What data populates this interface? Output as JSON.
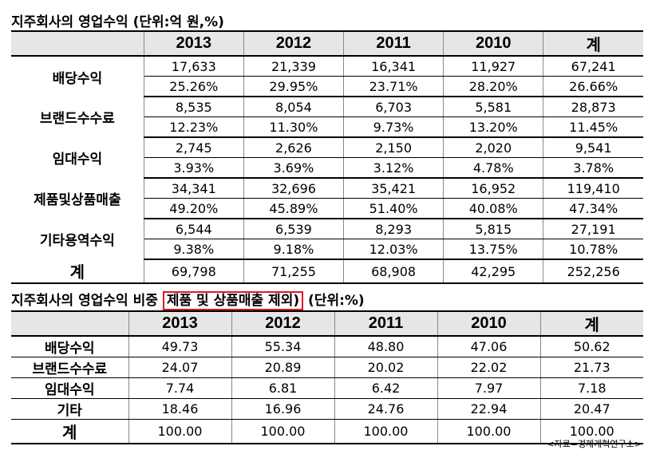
{
  "table1": {
    "title": "지주회사의 영업수익 (단위:억 원,%)",
    "headers": [
      "2013",
      "2012",
      "2011",
      "2010",
      "계"
    ],
    "rows": [
      {
        "label": "배당수익",
        "values": [
          "17,633",
          "21,339",
          "16,341",
          "11,927",
          "67,241"
        ],
        "pct": [
          "25.26%",
          "29.95%",
          "23.71%",
          "28.20%",
          "26.66%"
        ]
      },
      {
        "label": "브랜드수수료",
        "values": [
          "8,535",
          "8,054",
          "6,703",
          "5,581",
          "28,873"
        ],
        "pct": [
          "12.23%",
          "11.30%",
          "9.73%",
          "13.20%",
          "11.45%"
        ]
      },
      {
        "label": "임대수익",
        "values": [
          "2,745",
          "2,626",
          "2,150",
          "2,020",
          "9,541"
        ],
        "pct": [
          "3.93%",
          "3.69%",
          "3.12%",
          "4.78%",
          "3.78%"
        ]
      },
      {
        "label": "제품및상품매출",
        "values": [
          "34,341",
          "32,696",
          "35,421",
          "16,952",
          "119,410"
        ],
        "pct": [
          "49.20%",
          "45.89%",
          "51.40%",
          "40.08%",
          "47.34%"
        ]
      },
      {
        "label": "기타용역수익",
        "values": [
          "6,544",
          "6,539",
          "8,293",
          "5,815",
          "27,191"
        ],
        "pct": [
          "9.38%",
          "9.18%",
          "12.03%",
          "13.75%",
          "10.78%"
        ]
      }
    ],
    "total": {
      "label": "계",
      "values": [
        "69,798",
        "71,255",
        "68,908",
        "42,295",
        "252,256"
      ]
    }
  },
  "table2": {
    "title_prefix": "지주회사의 영업수익 비중",
    "title_highlight": "제품 및 상품매출 제외)",
    "title_suffix": "(단위:%)",
    "highlight_color": "#e0191f",
    "headers": [
      "2013",
      "2012",
      "2011",
      "2010",
      "계"
    ],
    "rows": [
      {
        "label": "배당수익",
        "values": [
          "49.73",
          "55.34",
          "48.80",
          "47.06",
          "50.62"
        ]
      },
      {
        "label": "브랜드수수료",
        "values": [
          "24.07",
          "20.89",
          "20.02",
          "22.02",
          "21.73"
        ]
      },
      {
        "label": "임대수익",
        "values": [
          "7.74",
          "6.81",
          "6.42",
          "7.97",
          "7.18"
        ]
      },
      {
        "label": "기타",
        "values": [
          "18.46",
          "16.96",
          "24.76",
          "22.94",
          "20.47"
        ]
      },
      {
        "label": "계",
        "values": [
          "100.00",
          "100.00",
          "100.00",
          "100.00",
          "100.00"
        ]
      }
    ]
  },
  "source": "<자료=경제개혁연구소>"
}
